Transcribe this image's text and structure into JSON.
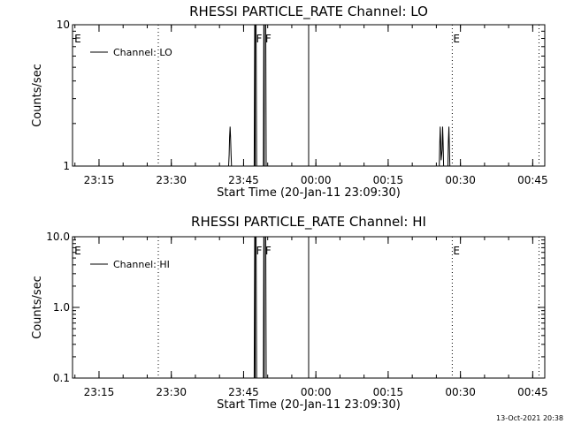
{
  "chart_data": [
    {
      "type": "line",
      "title": "RHESSI PARTICLE_RATE Channel: LO",
      "xlabel": "Start Time (20-Jan-11 23:09:30)",
      "ylabel": "Counts/sec",
      "y_scale": "log",
      "ylim": [
        1,
        10
      ],
      "y_ticks": [
        {
          "value": 1,
          "label": "1"
        },
        {
          "value": 10,
          "label": "10"
        }
      ],
      "xlim_minutes": [
        0,
        98
      ],
      "x_ticks": [
        {
          "t": 5.5,
          "label": "23:15"
        },
        {
          "t": 20.5,
          "label": "23:30"
        },
        {
          "t": 35.5,
          "label": "23:45"
        },
        {
          "t": 50.5,
          "label": "00:00"
        },
        {
          "t": 65.5,
          "label": "00:15"
        },
        {
          "t": 80.5,
          "label": "00:30"
        },
        {
          "t": 95.5,
          "label": "00:45"
        }
      ],
      "legend": {
        "placement": "top-left",
        "entries": [
          "Channel: LO"
        ]
      },
      "time_markers": [
        {
          "t": 0.2,
          "label": "E",
          "style": "none"
        },
        {
          "t": 17.8,
          "label": "",
          "style": "dotted"
        },
        {
          "t": 37.9,
          "label": "F",
          "style": "solid"
        },
        {
          "t": 39.8,
          "label": "F",
          "style": "solid"
        },
        {
          "t": 49.0,
          "label": "",
          "style": "solid"
        },
        {
          "t": 78.8,
          "label": "E",
          "style": "dotted"
        },
        {
          "t": 96.8,
          "label": "",
          "style": "dotted"
        }
      ],
      "series": [
        {
          "name": "Channel: LO",
          "points": [
            [
              0,
              1
            ],
            [
              32.4,
              1
            ],
            [
              32.5,
              1.2
            ],
            [
              32.6,
              1.6
            ],
            [
              32.7,
              1.9
            ],
            [
              32.8,
              1.6
            ],
            [
              32.9,
              1.2
            ],
            [
              33.0,
              1
            ],
            [
              37.7,
              1
            ],
            [
              37.8,
              10
            ],
            [
              38.1,
              10
            ],
            [
              38.2,
              1
            ],
            [
              39.6,
              1
            ],
            [
              39.7,
              10
            ],
            [
              40.1,
              10
            ],
            [
              40.2,
              1
            ],
            [
              76.1,
              1
            ],
            [
              76.2,
              1.4
            ],
            [
              76.3,
              1.9
            ],
            [
              76.4,
              1.5
            ],
            [
              76.5,
              1.1
            ],
            [
              76.7,
              1.3
            ],
            [
              76.8,
              1.9
            ],
            [
              76.9,
              1.5
            ],
            [
              77.0,
              1
            ],
            [
              77.9,
              1
            ],
            [
              78.0,
              1.5
            ],
            [
              78.1,
              1.9
            ],
            [
              78.2,
              1.4
            ],
            [
              78.3,
              1
            ],
            [
              98,
              1
            ]
          ]
        }
      ]
    },
    {
      "type": "line",
      "title": "RHESSI PARTICLE_RATE Channel: HI",
      "xlabel": "Start Time (20-Jan-11 23:09:30)",
      "ylabel": "Counts/sec",
      "y_scale": "log",
      "ylim": [
        0.1,
        10
      ],
      "y_ticks": [
        {
          "value": 0.1,
          "label": "0.1"
        },
        {
          "value": 1,
          "label": "1.0"
        },
        {
          "value": 10,
          "label": "10.0"
        }
      ],
      "xlim_minutes": [
        0,
        98
      ],
      "x_ticks": [
        {
          "t": 5.5,
          "label": "23:15"
        },
        {
          "t": 20.5,
          "label": "23:30"
        },
        {
          "t": 35.5,
          "label": "23:45"
        },
        {
          "t": 50.5,
          "label": "00:00"
        },
        {
          "t": 65.5,
          "label": "00:15"
        },
        {
          "t": 80.5,
          "label": "00:30"
        },
        {
          "t": 95.5,
          "label": "00:45"
        }
      ],
      "legend": {
        "placement": "top-left",
        "entries": [
          "Channel: HI"
        ]
      },
      "time_markers": [
        {
          "t": 0.2,
          "label": "E",
          "style": "none"
        },
        {
          "t": 17.8,
          "label": "",
          "style": "dotted"
        },
        {
          "t": 37.9,
          "label": "F",
          "style": "solid"
        },
        {
          "t": 39.8,
          "label": "F",
          "style": "solid"
        },
        {
          "t": 49.0,
          "label": "",
          "style": "solid"
        },
        {
          "t": 78.8,
          "label": "E",
          "style": "dotted"
        },
        {
          "t": 96.8,
          "label": "",
          "style": "dotted"
        }
      ],
      "series": [
        {
          "name": "Channel: HI",
          "points": [
            [
              0,
              0.1
            ],
            [
              37.7,
              0.1
            ],
            [
              37.8,
              10
            ],
            [
              38.1,
              10
            ],
            [
              38.2,
              0.1
            ],
            [
              39.6,
              0.1
            ],
            [
              39.7,
              10
            ],
            [
              40.1,
              10
            ],
            [
              40.2,
              0.1
            ],
            [
              98,
              0.1
            ]
          ]
        }
      ]
    }
  ],
  "footer": {
    "timestamp": "13-Oct-2021 20:38"
  }
}
